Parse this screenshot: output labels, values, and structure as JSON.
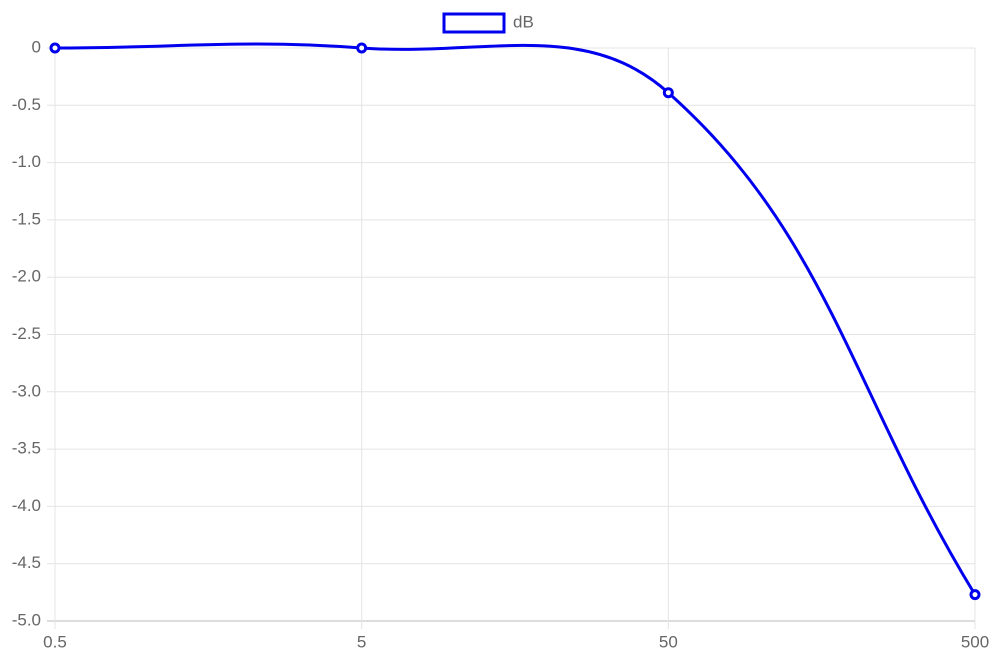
{
  "chart_data": {
    "type": "line",
    "categories": [
      "0.5",
      "5",
      "50",
      "500"
    ],
    "series": [
      {
        "name": "dB",
        "color": "#0000ee",
        "values": [
          0,
          0,
          -0.39,
          -4.77
        ]
      }
    ],
    "ylim": [
      -5,
      0
    ],
    "yticks": [
      0,
      -0.5,
      {
        "value": -1,
        "label": "-1.0"
      },
      -1.5,
      {
        "value": -2,
        "label": "-2.0"
      },
      -2.5,
      {
        "value": -3,
        "label": "-3.0"
      },
      -3.5,
      {
        "value": -4,
        "label": "-4.0"
      },
      -4.5,
      {
        "value": -5,
        "label": "-5.0"
      }
    ],
    "grid": true,
    "legend": "top"
  }
}
